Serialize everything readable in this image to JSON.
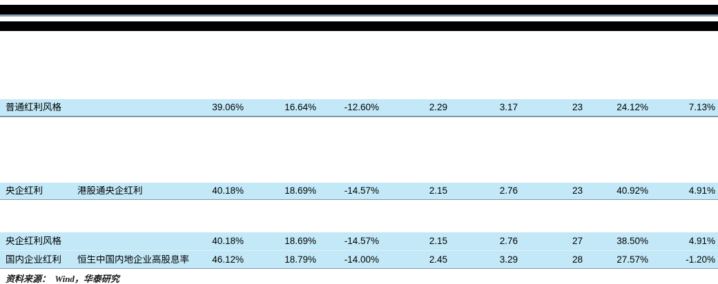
{
  "table": {
    "rows": [
      {
        "cells": [
          "普通红利风格",
          "",
          "39.06%",
          "16.64%",
          "-12.60%",
          "2.29",
          "3.17",
          "23",
          "24.12%",
          "7.13%"
        ]
      },
      {
        "cells": [
          "央企红利",
          "港股通央企红利",
          "40.18%",
          "18.69%",
          "-14.57%",
          "2.15",
          "2.76",
          "23",
          "40.92%",
          "4.91%"
        ]
      },
      {
        "cells": [
          "央企红利风格",
          "",
          "40.18%",
          "18.69%",
          "-14.57%",
          "2.15",
          "2.76",
          "27",
          "38.50%",
          "4.91%"
        ]
      },
      {
        "cells": [
          "国内企业红利",
          "恒生中国内地企业高股息率",
          "46.12%",
          "18.79%",
          "-14.00%",
          "2.45",
          "3.29",
          "28",
          "27.57%",
          "-1.20%"
        ]
      }
    ]
  },
  "footer": {
    "source_note": "资料来源：  Wind，华泰研究"
  },
  "colors": {
    "row_bg": "#c3e8f7",
    "top_line": "#8a9eb6",
    "row_border": "#8296a9",
    "pale_border": "#e4f2fa",
    "band": "#000000",
    "text": "#000000",
    "footer_text": "#1a1a1a"
  }
}
